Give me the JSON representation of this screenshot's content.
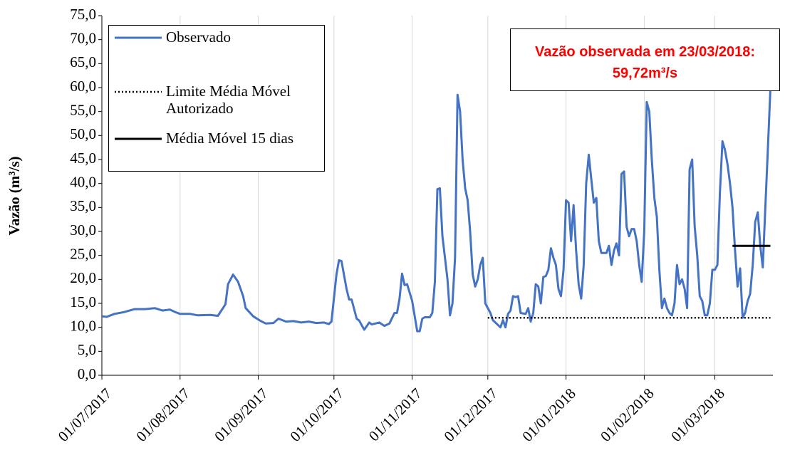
{
  "chart_data": {
    "type": "line",
    "ylabel": "Vazão (m³/s)",
    "annotations": [
      "Vazão observada em 23/03/2018:",
      "59,72m³/s"
    ],
    "annotation_color": "#ff0000",
    "xlim": [
      "01/07/2017",
      "24/03/2018"
    ],
    "xticks": [
      "01/07/2017",
      "01/08/2017",
      "01/09/2017",
      "01/10/2017",
      "01/11/2017",
      "01/12/2017",
      "01/01/2018",
      "01/02/2018",
      "01/03/2018"
    ],
    "xgrid": true,
    "ylim": [
      0,
      75
    ],
    "yticks": [
      {
        "value": 0,
        "label": "0,0"
      },
      {
        "value": 5,
        "label": "5,0"
      },
      {
        "value": 10,
        "label": "10,0"
      },
      {
        "value": 15,
        "label": "15,0"
      },
      {
        "value": 20,
        "label": "20,0"
      },
      {
        "value": 25,
        "label": "25,0"
      },
      {
        "value": 30,
        "label": "30,0"
      },
      {
        "value": 35,
        "label": "35,0"
      },
      {
        "value": 40,
        "label": "40,0"
      },
      {
        "value": 45,
        "label": "45,0"
      },
      {
        "value": 50,
        "label": "50,0"
      },
      {
        "value": 55,
        "label": "55,0"
      },
      {
        "value": 60,
        "label": "60,0"
      },
      {
        "value": 65,
        "label": "65,0"
      },
      {
        "value": 70,
        "label": "70,0"
      },
      {
        "value": 75,
        "label": "75,0"
      }
    ],
    "series": [
      {
        "name": "Observado",
        "color": "#4472c4",
        "style": "solid",
        "x": [
          "01/07/2017",
          "03/07/2017",
          "06/07/2017",
          "10/07/2017",
          "14/07/2017",
          "18/07/2017",
          "22/07/2017",
          "25/07/2017",
          "28/07/2017",
          "30/07/2017",
          "01/08/2017",
          "05/08/2017",
          "08/08/2017",
          "13/08/2017",
          "16/08/2017",
          "19/08/2017",
          "20/08/2017",
          "22/08/2017",
          "24/08/2017",
          "26/08/2017",
          "27/08/2017",
          "30/08/2017",
          "02/09/2017",
          "04/09/2017",
          "07/09/2017",
          "09/09/2017",
          "12/09/2017",
          "15/09/2017",
          "18/09/2017",
          "21/09/2017",
          "24/09/2017",
          "27/09/2017",
          "29/09/2017",
          "30/09/2017",
          "02/10/2017",
          "03/10/2017",
          "04/10/2017",
          "06/10/2017",
          "07/10/2017",
          "08/10/2017",
          "10/10/2017",
          "11/10/2017",
          "13/10/2017",
          "15/10/2017",
          "16/10/2017",
          "19/10/2017",
          "21/10/2017",
          "23/10/2017",
          "25/10/2017",
          "26/10/2017",
          "27/10/2017",
          "28/10/2017",
          "29/10/2017",
          "30/10/2017",
          "01/11/2017",
          "03/11/2017",
          "04/11/2017",
          "05/11/2017",
          "06/11/2017",
          "08/11/2017",
          "09/11/2017",
          "10/11/2017",
          "11/11/2017",
          "12/11/2017",
          "13/11/2017",
          "15/11/2017",
          "16/11/2017",
          "17/11/2017",
          "18/11/2017",
          "19/11/2017",
          "20/11/2017",
          "21/11/2017",
          "22/11/2017",
          "23/11/2017",
          "24/11/2017",
          "25/11/2017",
          "26/11/2017",
          "27/11/2017",
          "28/11/2017",
          "29/11/2017",
          "30/11/2017",
          "02/12/2017",
          "03/12/2017",
          "05/12/2017",
          "06/12/2017",
          "07/12/2017",
          "08/12/2017",
          "09/12/2017",
          "10/12/2017",
          "11/12/2017",
          "12/12/2017",
          "13/12/2017",
          "14/12/2017",
          "16/12/2017",
          "17/12/2017",
          "18/12/2017",
          "19/12/2017",
          "20/12/2017",
          "21/12/2017",
          "22/12/2017",
          "23/12/2017",
          "24/12/2017",
          "25/12/2017",
          "26/12/2017",
          "27/12/2017",
          "28/12/2017",
          "29/12/2017",
          "30/12/2017",
          "31/12/2017",
          "01/01/2018",
          "02/01/2018",
          "03/01/2018",
          "04/01/2018",
          "05/01/2018",
          "06/01/2018",
          "07/01/2018",
          "08/01/2018",
          "09/01/2018",
          "10/01/2018",
          "11/01/2018",
          "12/01/2018",
          "13/01/2018",
          "14/01/2018",
          "15/01/2018",
          "17/01/2018",
          "18/01/2018",
          "19/01/2018",
          "20/01/2018",
          "21/01/2018",
          "22/01/2018",
          "23/01/2018",
          "24/01/2018",
          "25/01/2018",
          "26/01/2018",
          "27/01/2018",
          "28/01/2018",
          "29/01/2018",
          "30/01/2018",
          "31/01/2018",
          "01/02/2018",
          "02/02/2018",
          "03/02/2018",
          "04/02/2018",
          "05/02/2018",
          "06/02/2018",
          "07/02/2018",
          "08/02/2018",
          "09/02/2018",
          "10/02/2018",
          "11/02/2018",
          "12/02/2018",
          "13/02/2018",
          "14/02/2018",
          "15/02/2018",
          "16/02/2018",
          "17/02/2018",
          "18/02/2018",
          "19/02/2018",
          "20/02/2018",
          "21/02/2018",
          "22/02/2018",
          "23/02/2018",
          "24/02/2018",
          "25/02/2018",
          "26/02/2018",
          "27/02/2018",
          "28/02/2018",
          "01/03/2018",
          "02/03/2018",
          "03/03/2018",
          "04/03/2018",
          "05/03/2018",
          "06/03/2018",
          "07/03/2018",
          "08/03/2018",
          "09/03/2018",
          "10/03/2018",
          "11/03/2018",
          "12/03/2018",
          "13/03/2018",
          "14/03/2018",
          "15/03/2018",
          "16/03/2018",
          "17/03/2018",
          "18/03/2018",
          "19/03/2018",
          "20/03/2018",
          "21/03/2018",
          "22/03/2018",
          "23/03/2018"
        ],
        "values": [
          12.3,
          12.2,
          12.8,
          13.2,
          13.8,
          13.8,
          14.0,
          13.5,
          13.7,
          13.2,
          12.8,
          12.8,
          12.5,
          12.6,
          12.4,
          14.8,
          19.0,
          21.0,
          19.5,
          16.5,
          14.0,
          12.3,
          11.3,
          10.8,
          10.9,
          11.8,
          11.2,
          11.3,
          11.0,
          11.2,
          10.9,
          11.0,
          10.7,
          11.2,
          21.0,
          24.0,
          23.8,
          18.0,
          15.8,
          15.8,
          11.8,
          11.4,
          9.5,
          11.0,
          10.6,
          11.0,
          10.3,
          10.8,
          13.0,
          13.0,
          16.0,
          21.2,
          18.8,
          19.0,
          15.5,
          9.2,
          9.2,
          11.8,
          12.1,
          12.1,
          13.0,
          19.5,
          38.8,
          39.0,
          29.0,
          20.0,
          12.5,
          15.0,
          24.5,
          58.5,
          55.0,
          45.0,
          39.0,
          36.5,
          30.0,
          21.0,
          18.5,
          20.0,
          23.0,
          24.5,
          15.0,
          13.0,
          11.5,
          10.5,
          10.0,
          11.5,
          10.0,
          12.8,
          13.5,
          16.5,
          16.3,
          16.5,
          13.0,
          12.8,
          14.0,
          11.2,
          13.0,
          19.0,
          18.5,
          15.0,
          20.5,
          20.7,
          22.0,
          26.5,
          24.5,
          23.0,
          18.0,
          16.5,
          22.0,
          36.5,
          36.0,
          28.0,
          35.5,
          26.0,
          19.0,
          16.0,
          23.0,
          40.0,
          46.0,
          41.0,
          36.0,
          37.0,
          28.0,
          25.5,
          25.5,
          27.0,
          23.0,
          26.0,
          27.5,
          25.0,
          42.0,
          42.5,
          31.0,
          29.0,
          30.5,
          30.5,
          28.0,
          23.0,
          19.5,
          30.0,
          57.0,
          55.0,
          45.0,
          37.0,
          33.0,
          22.0,
          14.0,
          16.0,
          14.0,
          13.0,
          12.5,
          15.0,
          23.0,
          19.0,
          20.0,
          18.0,
          14.0,
          43.0,
          45.0,
          31.0,
          25.0,
          16.5,
          15.5,
          12.5,
          12.5,
          15.0,
          22.0,
          22.0,
          23.0,
          38.0,
          48.8,
          47.0,
          44.0,
          40.0,
          35.0,
          26.0,
          18.5,
          22.3,
          12.0,
          13.0,
          15.5,
          17.0,
          23.0,
          32.0,
          34.0,
          27.0,
          22.5,
          35.0,
          47.0,
          59.72
        ]
      },
      {
        "name": "Limite Média Móvel Autorizado",
        "color": "#000000",
        "style": "dotted",
        "x": [
          "01/12/2017",
          "23/03/2018"
        ],
        "values": [
          12,
          12
        ]
      },
      {
        "name": "Média Móvel 15 dias",
        "color": "#000000",
        "style": "solid",
        "x": [
          "08/03/2018",
          "23/03/2018"
        ],
        "values": [
          27,
          27
        ]
      }
    ]
  }
}
